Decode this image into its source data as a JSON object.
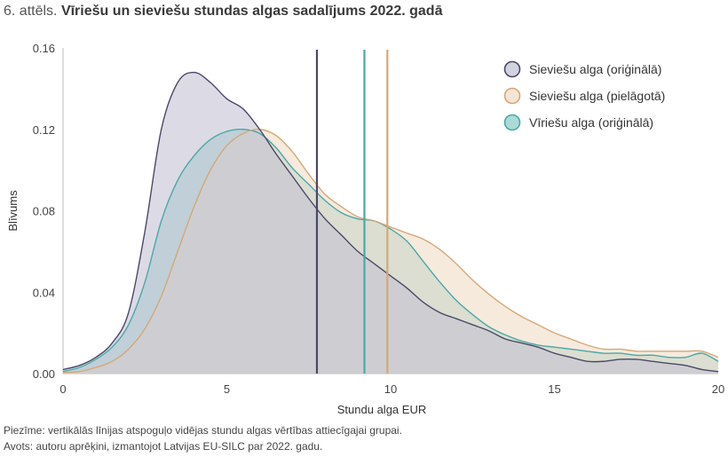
{
  "figure": {
    "prefix": "6. attēls.",
    "title": "Vīriešu un sieviešu stundas algas sadalījums 2022. gadā"
  },
  "notes": {
    "note": "Piezīme: vertikālās līnijas atspoguļo vidējas stundu algas vērtības attiecīgajai grupai.",
    "source": "Avots: autoru aprēķini, izmantojot Latvijas EU-SILC par 2022. gadu."
  },
  "chart_data": {
    "type": "area",
    "xlabel": "Stundu alga EUR",
    "ylabel": "Blīvums",
    "xlim": [
      0,
      20
    ],
    "ylim": [
      0,
      0.16
    ],
    "xticks": [
      0,
      5,
      10,
      15,
      20
    ],
    "yticks": [
      0.0,
      0.04,
      0.08,
      0.12,
      0.16
    ],
    "ytick_labels": [
      "0.00",
      "0.04",
      "0.08",
      "0.12",
      "0.16"
    ],
    "grid": false,
    "legend_position": "top-right",
    "series": [
      {
        "name": "Vīriešu alga (oriģinālā)",
        "color": "#4aa8a8",
        "fill": "#8fcfc9",
        "mean": 9.2,
        "x": [
          0,
          0.5,
          1,
          1.5,
          2,
          2.5,
          3,
          3.5,
          4,
          4.5,
          5,
          5.5,
          6,
          6.5,
          7,
          7.5,
          8,
          8.5,
          9,
          9.5,
          10,
          10.5,
          11,
          11.5,
          12,
          12.5,
          13,
          13.5,
          14,
          14.5,
          15,
          15.5,
          16,
          16.5,
          17,
          17.5,
          18,
          18.5,
          19,
          19.5,
          20
        ],
        "y": [
          0.001,
          0.003,
          0.007,
          0.013,
          0.024,
          0.045,
          0.075,
          0.095,
          0.107,
          0.115,
          0.119,
          0.12,
          0.118,
          0.111,
          0.101,
          0.093,
          0.085,
          0.079,
          0.076,
          0.075,
          0.071,
          0.065,
          0.055,
          0.045,
          0.036,
          0.029,
          0.023,
          0.019,
          0.016,
          0.014,
          0.013,
          0.012,
          0.011,
          0.01,
          0.01,
          0.009,
          0.009,
          0.008,
          0.008,
          0.01,
          0.006
        ]
      },
      {
        "name": "Sieviešu alga (pielāgotā)",
        "color": "#d4a878",
        "fill": "#f0dcc6",
        "mean": 9.9,
        "x": [
          0,
          0.5,
          1,
          1.5,
          2,
          2.5,
          3,
          3.5,
          4,
          4.5,
          5,
          5.5,
          6,
          6.5,
          7,
          7.5,
          8,
          8.5,
          9,
          9.5,
          10,
          10.5,
          11,
          11.5,
          12,
          12.5,
          13,
          13.5,
          14,
          14.5,
          15,
          15.5,
          16,
          16.5,
          17,
          17.5,
          18,
          18.5,
          19,
          19.5,
          20
        ],
        "y": [
          0.0005,
          0.001,
          0.003,
          0.006,
          0.012,
          0.022,
          0.038,
          0.06,
          0.082,
          0.1,
          0.112,
          0.118,
          0.12,
          0.117,
          0.109,
          0.098,
          0.088,
          0.082,
          0.077,
          0.075,
          0.072,
          0.069,
          0.066,
          0.061,
          0.054,
          0.046,
          0.039,
          0.033,
          0.028,
          0.024,
          0.02,
          0.017,
          0.014,
          0.012,
          0.012,
          0.011,
          0.011,
          0.011,
          0.011,
          0.011,
          0.008
        ]
      },
      {
        "name": "Sieviešu alga (oriģinālā)",
        "color": "#4a4868",
        "fill": "#c4c3d4",
        "mean": 7.75,
        "x": [
          0,
          0.5,
          1,
          1.5,
          2,
          2.5,
          3,
          3.5,
          4,
          4.5,
          5,
          5.5,
          6,
          6.5,
          7,
          7.5,
          8,
          8.5,
          9,
          9.5,
          10,
          10.5,
          11,
          11.5,
          12,
          12.5,
          13,
          13.5,
          14,
          14.5,
          15,
          15.5,
          16,
          16.5,
          17,
          17.5,
          18,
          18.5,
          19,
          19.5,
          20
        ],
        "y": [
          0.002,
          0.004,
          0.008,
          0.015,
          0.03,
          0.07,
          0.12,
          0.143,
          0.148,
          0.143,
          0.135,
          0.13,
          0.12,
          0.108,
          0.097,
          0.086,
          0.076,
          0.068,
          0.06,
          0.054,
          0.048,
          0.042,
          0.035,
          0.03,
          0.027,
          0.024,
          0.021,
          0.017,
          0.015,
          0.013,
          0.01,
          0.008,
          0.006,
          0.006,
          0.007,
          0.007,
          0.006,
          0.005,
          0.004,
          0.002,
          0.001
        ]
      }
    ],
    "legend_order": [
      2,
      1,
      0
    ]
  }
}
